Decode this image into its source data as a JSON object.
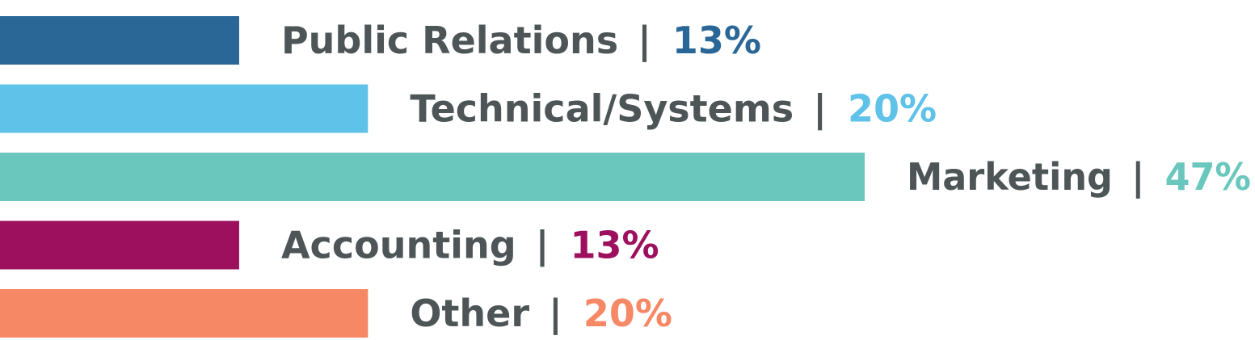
{
  "chart_data": {
    "type": "bar",
    "orientation": "horizontal",
    "label_color": "#4d5557",
    "separator": "|",
    "categories": [
      "Public Relations",
      "Technical/Systems",
      "Marketing",
      "Accounting",
      "Other"
    ],
    "values": [
      13,
      20,
      47,
      13,
      20
    ],
    "value_labels": [
      "13%",
      "20%",
      "47%",
      "13%",
      "20%"
    ],
    "colors": [
      "#2a6797",
      "#5fc2e8",
      "#69c7bd",
      "#9c105d",
      "#f68866"
    ],
    "xlim": [
      0,
      47
    ],
    "grid": false
  }
}
